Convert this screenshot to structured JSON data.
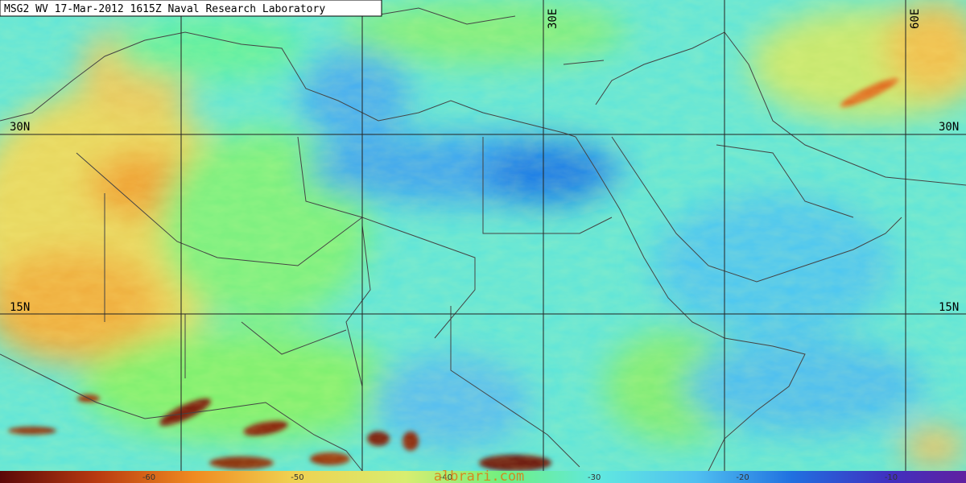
{
  "header": {
    "title": "MSG2 WV 17-Mar-2012 1615Z Naval Research Laboratory"
  },
  "map": {
    "latitude_labels": [
      "30N",
      "15N"
    ],
    "longitude_labels": [
      "30E",
      "60E"
    ]
  },
  "colorbar": {
    "labels": [
      -60,
      -50,
      -40,
      -30,
      -20,
      -10
    ]
  },
  "watermark": "albrari.com"
}
